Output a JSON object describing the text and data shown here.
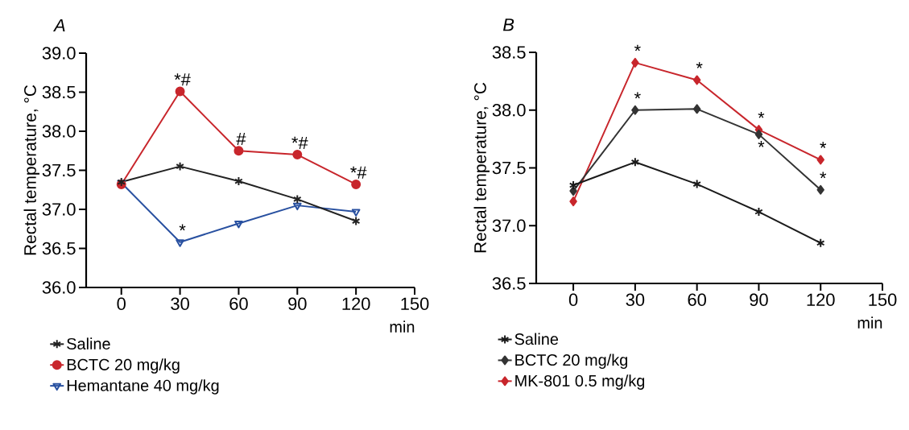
{
  "chart_data": [
    {
      "type": "line",
      "title": "A",
      "xlabel": "min",
      "ylabel": "Rectal temperature, °C",
      "x": [
        0,
        30,
        60,
        90,
        120
      ],
      "xlim": [
        -18,
        150
      ],
      "xticks": [
        0,
        30,
        60,
        90,
        120,
        150
      ],
      "ylim": [
        36,
        39
      ],
      "yticks": [
        {
          "value": 36,
          "label": "36.0"
        },
        36.5,
        {
          "value": 37,
          "label": "37.0"
        },
        37.5,
        {
          "value": 38,
          "label": "38.0"
        },
        38.5,
        {
          "value": 39,
          "label": "39.0"
        }
      ],
      "legend": "bottom",
      "grid": false,
      "series": [
        {
          "name": "Saline",
          "color": "#222222",
          "marker": "cross",
          "values": [
            37.35,
            37.55,
            37.36,
            37.13,
            36.85
          ]
        },
        {
          "name": "BCTC 20 mg/kg",
          "color": "#c8262c",
          "marker": "circle",
          "values": [
            37.32,
            38.51,
            37.75,
            37.7,
            37.32
          ]
        },
        {
          "name": "Hemantane 40 mg/kg",
          "color": "#2850a0",
          "marker": "triangle",
          "values": [
            37.34,
            36.58,
            36.82,
            37.05,
            36.97
          ]
        }
      ],
      "annotations": [
        {
          "text": "*#",
          "x": 30,
          "y": 38.51
        },
        {
          "text": "#",
          "x": 60,
          "y": 37.75
        },
        {
          "text": "*#",
          "x": 90,
          "y": 37.7
        },
        {
          "text": "*#",
          "x": 120,
          "y": 37.32
        },
        {
          "text": "*",
          "x": 30,
          "y": 36.58
        }
      ]
    },
    {
      "type": "line",
      "title": "B",
      "xlabel": "min",
      "ylabel": "Rectal temperature, °C",
      "x": [
        0,
        30,
        60,
        90,
        120
      ],
      "xlim": [
        -18,
        150
      ],
      "xticks": [
        0,
        30,
        60,
        90,
        120,
        150
      ],
      "ylim": [
        36.5,
        38.5
      ],
      "yticks": [
        36.5,
        {
          "value": 37,
          "label": "37.0"
        },
        37.5,
        {
          "value": 38,
          "label": "38.0"
        },
        38.5
      ],
      "legend": "bottom",
      "grid": false,
      "series": [
        {
          "name": "Saline",
          "color": "#1a1a1a",
          "marker": "cross",
          "values": [
            37.35,
            37.55,
            37.36,
            37.12,
            36.85
          ]
        },
        {
          "name": "BCTC 20 mg/kg",
          "color": "#333333",
          "marker": "diamond",
          "values": [
            37.3,
            38.0,
            38.01,
            37.79,
            37.31
          ]
        },
        {
          "name": "MK-801 0.5 mg/kg",
          "color": "#c8262c",
          "marker": "diamond",
          "values": [
            37.21,
            38.41,
            38.26,
            37.83,
            37.57
          ]
        }
      ],
      "annotations": [
        {
          "text": "*",
          "x": 30,
          "y": 38.41
        },
        {
          "text": "*",
          "x": 60,
          "y": 38.26
        },
        {
          "text": "*",
          "x": 90,
          "y": 37.83
        },
        {
          "text": "*",
          "x": 120,
          "y": 37.57
        },
        {
          "text": "*",
          "x": 30,
          "y": 38.0
        },
        {
          "text": "*",
          "x": 90,
          "y": 37.79
        },
        {
          "text": "*",
          "x": 120,
          "y": 37.31
        }
      ]
    }
  ]
}
